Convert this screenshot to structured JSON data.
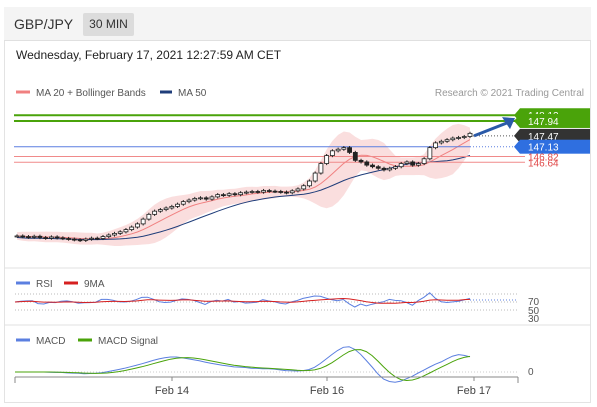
{
  "header": {
    "symbol": "GBP/JPY",
    "timeframe": "30 MIN"
  },
  "datetime": "Wednesday, February 17, 2021 12:27:59 AM CET",
  "colors": {
    "ma20": "#f08080",
    "ma50": "#1f3d7a",
    "bollinger_fill": "#f9d6d6",
    "resistance": "#4aa30a",
    "current": "#333333",
    "ma50_tag": "#2f6fe0",
    "support": "#e04848",
    "rsi": "#5b7fe0",
    "rsi_ma": "#d62020",
    "macd": "#5b7fe0",
    "macd_signal": "#4aa30a",
    "arrow": "#2a5aa8"
  },
  "chart_data": [
    {
      "type": "candlestick",
      "panel": "price",
      "legend": [
        {
          "name": "MA 20 + Bollinger Bands",
          "color": "#f08080"
        },
        {
          "name": "MA 50",
          "color": "#1f3d7a"
        }
      ],
      "credit": "Research © 2021 Trading Central",
      "ylim": [
        143.5,
        148.6
      ],
      "series_close": [
        144.32,
        144.3,
        144.28,
        144.31,
        144.27,
        144.25,
        144.29,
        144.26,
        144.24,
        144.22,
        144.2,
        144.18,
        144.22,
        144.25,
        144.24,
        144.3,
        144.35,
        144.4,
        144.45,
        144.52,
        144.6,
        144.7,
        144.85,
        145.0,
        145.1,
        145.15,
        145.2,
        145.25,
        145.32,
        145.4,
        145.45,
        145.5,
        145.52,
        145.48,
        145.55,
        145.62,
        145.6,
        145.65,
        145.62,
        145.68,
        145.7,
        145.72,
        145.7,
        145.75,
        145.73,
        145.72,
        145.7,
        145.68,
        145.74,
        145.8,
        145.9,
        146.05,
        146.3,
        146.6,
        146.85,
        147.0,
        147.05,
        147.1,
        146.95,
        146.7,
        146.65,
        146.55,
        146.5,
        146.45,
        146.4,
        146.45,
        146.5,
        146.6,
        146.65,
        146.55,
        146.6,
        146.75,
        147.1,
        147.25,
        147.3,
        147.35,
        147.4,
        147.42,
        147.45,
        147.55
      ],
      "price_levels": [
        {
          "label": "148.12",
          "value": 148.12,
          "kind": "resistance"
        },
        {
          "label": "147.94",
          "value": 147.94,
          "kind": "resistance"
        },
        {
          "label": "147.47",
          "value": 147.47,
          "kind": "current"
        },
        {
          "label": "147.13",
          "value": 147.13,
          "kind": "ma50"
        },
        {
          "label": "146.82",
          "value": 146.82,
          "kind": "support"
        },
        {
          "label": "146.64",
          "value": 146.64,
          "kind": "support"
        }
      ],
      "x_ticks": [
        "Feb 14",
        "Feb 16",
        "Feb 17"
      ]
    },
    {
      "type": "line",
      "panel": "rsi",
      "series": [
        {
          "name": "RSI",
          "color": "#5b7fe0"
        },
        {
          "name": "9MA",
          "color": "#d62020"
        }
      ],
      "y_labels": [
        "70",
        "50",
        "30"
      ],
      "ylim": [
        0,
        100
      ]
    },
    {
      "type": "line",
      "panel": "macd",
      "series": [
        {
          "name": "MACD",
          "color": "#5b7fe0"
        },
        {
          "name": "MACD Signal",
          "color": "#4aa30a"
        }
      ],
      "y_labels": [
        "0"
      ]
    }
  ]
}
